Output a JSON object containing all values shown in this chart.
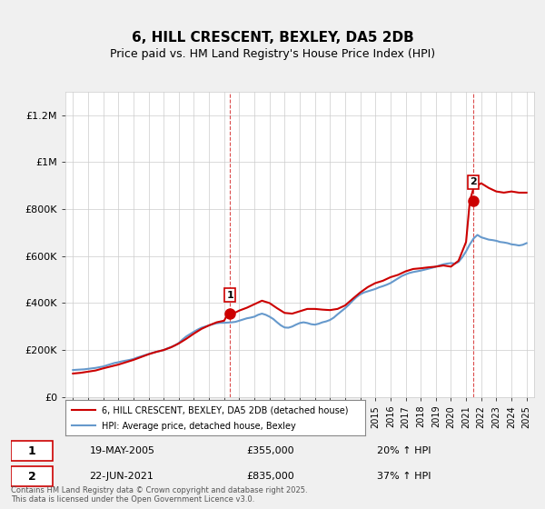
{
  "title": "6, HILL CRESCENT, BEXLEY, DA5 2DB",
  "subtitle": "Price paid vs. HM Land Registry's House Price Index (HPI)",
  "background_color": "#f0f0f0",
  "plot_bg_color": "#ffffff",
  "years_start": 1995,
  "years_end": 2025,
  "ylim": [
    0,
    1300000
  ],
  "yticks": [
    0,
    200000,
    400000,
    600000,
    800000,
    1000000,
    1200000
  ],
  "ytick_labels": [
    "£0",
    "£200K",
    "£400K",
    "£600K",
    "£800K",
    "£1M",
    "£1.2M"
  ],
  "xticks": [
    1995,
    1996,
    1997,
    1998,
    1999,
    2000,
    2001,
    2002,
    2003,
    2004,
    2005,
    2006,
    2007,
    2008,
    2009,
    2010,
    2011,
    2012,
    2013,
    2014,
    2015,
    2016,
    2017,
    2018,
    2019,
    2020,
    2021,
    2022,
    2023,
    2024,
    2025
  ],
  "sale1_x": 2005.38,
  "sale1_y": 355000,
  "sale1_label": "1",
  "sale1_date": "19-MAY-2005",
  "sale1_price": "£355,000",
  "sale1_hpi": "20% ↑ HPI",
  "sale2_x": 2021.47,
  "sale2_y": 835000,
  "sale2_label": "2",
  "sale2_date": "22-JUN-2021",
  "sale2_price": "£835,000",
  "sale2_hpi": "37% ↑ HPI",
  "red_line_color": "#cc0000",
  "blue_line_color": "#6699cc",
  "vline_color": "#cc0000",
  "footer": "Contains HM Land Registry data © Crown copyright and database right 2025.\nThis data is licensed under the Open Government Licence v3.0.",
  "legend_label_red": "6, HILL CRESCENT, BEXLEY, DA5 2DB (detached house)",
  "legend_label_blue": "HPI: Average price, detached house, Bexley",
  "hpi_data": {
    "x": [
      1995,
      1995.25,
      1995.5,
      1995.75,
      1996,
      1996.25,
      1996.5,
      1996.75,
      1997,
      1997.25,
      1997.5,
      1997.75,
      1998,
      1998.25,
      1998.5,
      1998.75,
      1999,
      1999.25,
      1999.5,
      1999.75,
      2000,
      2000.25,
      2000.5,
      2000.75,
      2001,
      2001.25,
      2001.5,
      2001.75,
      2002,
      2002.25,
      2002.5,
      2002.75,
      2003,
      2003.25,
      2003.5,
      2003.75,
      2004,
      2004.25,
      2004.5,
      2004.75,
      2005,
      2005.25,
      2005.5,
      2005.75,
      2006,
      2006.25,
      2006.5,
      2006.75,
      2007,
      2007.25,
      2007.5,
      2007.75,
      2008,
      2008.25,
      2008.5,
      2008.75,
      2009,
      2009.25,
      2009.5,
      2009.75,
      2010,
      2010.25,
      2010.5,
      2010.75,
      2011,
      2011.25,
      2011.5,
      2011.75,
      2012,
      2012.25,
      2012.5,
      2012.75,
      2013,
      2013.25,
      2013.5,
      2013.75,
      2014,
      2014.25,
      2014.5,
      2014.75,
      2015,
      2015.25,
      2015.5,
      2015.75,
      2016,
      2016.25,
      2016.5,
      2016.75,
      2017,
      2017.25,
      2017.5,
      2017.75,
      2018,
      2018.25,
      2018.5,
      2018.75,
      2019,
      2019.25,
      2019.5,
      2019.75,
      2020,
      2020.25,
      2020.5,
      2020.75,
      2021,
      2021.25,
      2021.5,
      2021.75,
      2022,
      2022.25,
      2022.5,
      2022.75,
      2023,
      2023.25,
      2023.5,
      2023.75,
      2024,
      2024.25,
      2024.5,
      2024.75,
      2025
    ],
    "y": [
      115000,
      116000,
      117000,
      118000,
      120000,
      122000,
      124000,
      127000,
      130000,
      135000,
      140000,
      145000,
      148000,
      152000,
      155000,
      158000,
      162000,
      168000,
      173000,
      178000,
      183000,
      188000,
      192000,
      196000,
      200000,
      207000,
      213000,
      220000,
      230000,
      245000,
      258000,
      268000,
      278000,
      287000,
      295000,
      300000,
      305000,
      310000,
      314000,
      316000,
      316000,
      317000,
      318000,
      320000,
      325000,
      330000,
      335000,
      338000,
      342000,
      350000,
      355000,
      350000,
      342000,
      332000,
      318000,
      305000,
      296000,
      295000,
      300000,
      308000,
      315000,
      318000,
      315000,
      310000,
      308000,
      312000,
      318000,
      322000,
      328000,
      338000,
      352000,
      365000,
      378000,
      393000,
      410000,
      425000,
      437000,
      445000,
      450000,
      455000,
      460000,
      467000,
      472000,
      478000,
      485000,
      495000,
      505000,
      515000,
      522000,
      528000,
      532000,
      535000,
      538000,
      542000,
      546000,
      550000,
      555000,
      560000,
      565000,
      568000,
      570000,
      568000,
      575000,
      595000,
      620000,
      650000,
      675000,
      690000,
      680000,
      675000,
      670000,
      668000,
      665000,
      660000,
      658000,
      655000,
      650000,
      648000,
      645000,
      648000,
      655000
    ]
  },
  "price_paid_data": {
    "x": [
      1995,
      1995.5,
      1996,
      1996.5,
      1997,
      1997.5,
      1998,
      1998.5,
      1999,
      1999.5,
      2000,
      2000.5,
      2001,
      2001.5,
      2002,
      2002.5,
      2003,
      2003.5,
      2004,
      2004.5,
      2005,
      2005.25,
      2005.5,
      2005.75,
      2006,
      2006.5,
      2007,
      2007.5,
      2008,
      2008.5,
      2009,
      2009.5,
      2010,
      2010.5,
      2011,
      2011.5,
      2012,
      2012.5,
      2013,
      2013.5,
      2014,
      2014.5,
      2015,
      2015.5,
      2016,
      2016.5,
      2017,
      2017.5,
      2018,
      2018.5,
      2019,
      2019.5,
      2020,
      2020.5,
      2021,
      2021.25,
      2021.5,
      2021.75,
      2022,
      2022.5,
      2023,
      2023.5,
      2024,
      2024.5,
      2025
    ],
    "y": [
      100000,
      103000,
      108000,
      113000,
      122000,
      130000,
      138000,
      148000,
      158000,
      170000,
      182000,
      192000,
      200000,
      212000,
      228000,
      248000,
      270000,
      290000,
      305000,
      318000,
      325000,
      355000,
      355000,
      360000,
      368000,
      380000,
      395000,
      410000,
      400000,
      378000,
      358000,
      355000,
      365000,
      375000,
      375000,
      372000,
      370000,
      375000,
      390000,
      418000,
      445000,
      468000,
      485000,
      495000,
      510000,
      520000,
      535000,
      545000,
      548000,
      552000,
      555000,
      560000,
      555000,
      580000,
      660000,
      835000,
      890000,
      900000,
      910000,
      890000,
      875000,
      870000,
      875000,
      870000,
      870000
    ]
  }
}
